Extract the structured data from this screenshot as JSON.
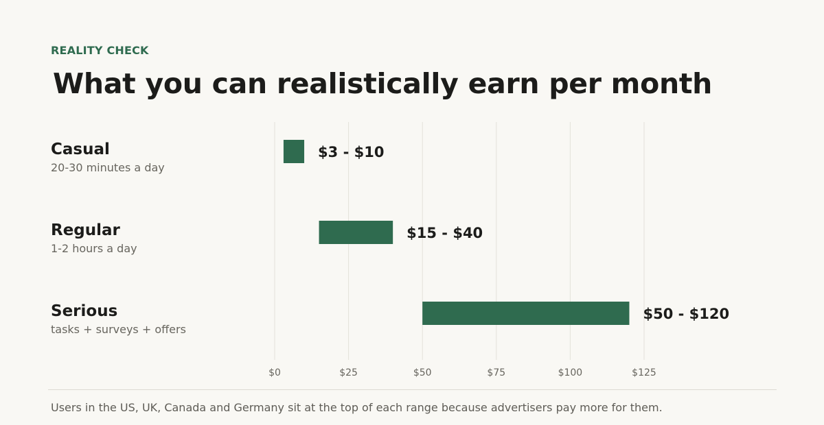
{
  "eyebrow": "REALITY CHECK",
  "title": "What you can realistically earn per month",
  "footnote": "Users in the US, UK, Canada and Germany sit at the top of each range because advertisers pay more for them.",
  "colors": {
    "accent": "#2f6b4f",
    "bar": "#2f6b4f",
    "text": "#1c1c1a",
    "muted": "#67655e",
    "grid": "#e3e1da",
    "background": "#f9f8f4"
  },
  "chart_data": {
    "type": "bar",
    "orientation": "horizontal",
    "range_bars": true,
    "categories": [
      "Casual",
      "Regular",
      "Serious"
    ],
    "subtitles": [
      "20-30 minutes a day",
      "1-2 hours a day",
      "tasks + surveys + offers"
    ],
    "ranges": [
      [
        3,
        10
      ],
      [
        15,
        40
      ],
      [
        50,
        120
      ]
    ],
    "data_labels": [
      "$3 - $10",
      "$15 - $40",
      "$50 - $120"
    ],
    "x_ticks": [
      0,
      25,
      50,
      75,
      100,
      125
    ],
    "x_tick_labels": [
      "$0",
      "$25",
      "$50",
      "$75",
      "$100",
      "$125"
    ],
    "xlim": [
      0,
      125
    ],
    "grid": true
  }
}
